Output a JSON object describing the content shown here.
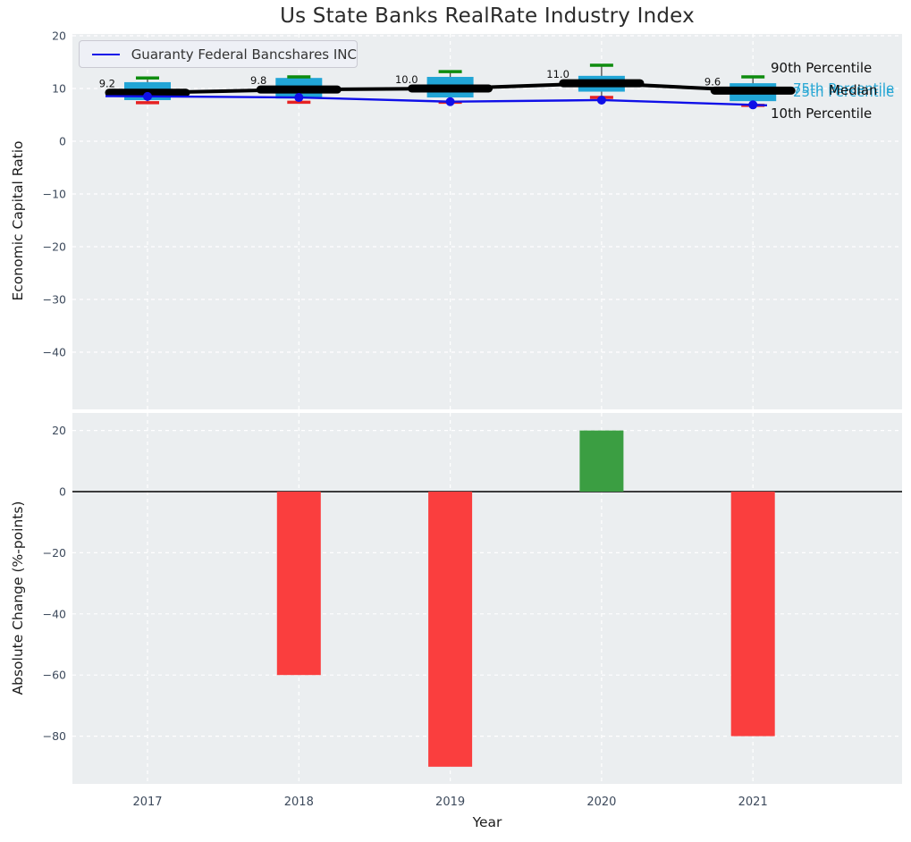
{
  "title": "Us State Banks RealRate Industry Index",
  "legend": {
    "label": "Guaranty Federal Bancshares INC"
  },
  "annotations": {
    "p90": "90th Percentile",
    "p75": "75th Percentile",
    "median": "Median",
    "p25": "25th Percentile",
    "p10": "10th Percentile"
  },
  "colors": {
    "company_line": "#0f0fe8",
    "median_line": "#000000",
    "box_fill": "#21a5d6",
    "whisker": "#4a4a4a",
    "p90_cap": "#0e8c0e",
    "p10_cap": "#e62222",
    "bar_negative": "#fa3e3e",
    "bar_positive": "#3b9e42",
    "plot_bg": "#ebeef0",
    "grid": "#ffffff",
    "tick_text": "#3d4a5c",
    "percentile_text": "#29a7d4"
  },
  "chart_data": [
    {
      "type": "boxplot-line",
      "title": "Us State Banks RealRate Industry Index",
      "ylabel": "Economic Capital Ratio",
      "x": [
        "2017",
        "2018",
        "2019",
        "2020",
        "2021"
      ],
      "ylim": [
        -50,
        20
      ],
      "yticks": [
        20,
        10,
        0,
        -10,
        -20,
        -30,
        -40
      ],
      "grid": true,
      "legend_position": "upper left",
      "median": [
        9.2,
        9.8,
        10.0,
        11.0,
        9.6
      ],
      "median_labels": [
        "9.2",
        "9.8",
        "10.0",
        "11.0",
        "9.6"
      ],
      "p90": [
        12.0,
        12.2,
        13.2,
        14.4,
        12.2
      ],
      "p75": [
        11.2,
        12.0,
        12.2,
        12.4,
        11.0
      ],
      "p25": [
        7.8,
        8.1,
        8.3,
        9.4,
        7.6
      ],
      "p10": [
        7.3,
        7.4,
        7.4,
        8.3,
        6.8
      ],
      "series": [
        {
          "name": "Guaranty Federal Bancshares INC",
          "type": "line",
          "values": [
            8.5,
            8.3,
            7.5,
            7.8,
            6.9
          ]
        }
      ]
    },
    {
      "type": "bar",
      "categories": [
        "2017",
        "2018",
        "2019",
        "2020",
        "2021"
      ],
      "values": [
        0,
        -60,
        -90,
        20,
        -80
      ],
      "xlabel": "Year",
      "ylabel": "Absolute Change (%-points)",
      "yticks": [
        20,
        0,
        -20,
        -40,
        -60,
        -80
      ],
      "ylim": [
        -96,
        26
      ],
      "grid": true
    }
  ]
}
